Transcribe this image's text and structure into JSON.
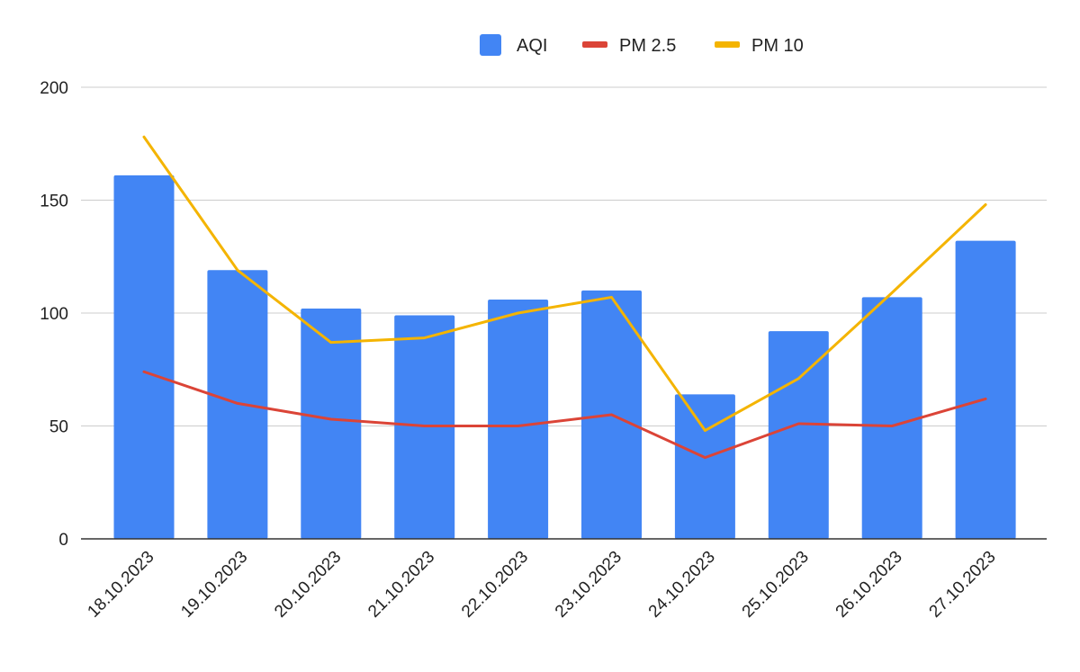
{
  "chart_data": {
    "type": "bar",
    "title": "",
    "xlabel": "",
    "ylabel": "",
    "categories": [
      "18.10.2023",
      "19.10.2023",
      "20.10.2023",
      "21.10.2023",
      "22.10.2023",
      "23.10.2023",
      "24.10.2023",
      "25.10.2023",
      "26.10.2023",
      "27.10.2023"
    ],
    "ylim": [
      0,
      200
    ],
    "yticks": [
      "0",
      "50",
      "100",
      "150",
      "200"
    ],
    "grid": true,
    "legend_position": "top",
    "series": [
      {
        "name": "AQI",
        "type": "bar",
        "color": "#4285f4",
        "values": [
          161,
          119,
          102,
          99,
          106,
          110,
          64,
          92,
          107,
          132
        ]
      },
      {
        "name": "PM 2.5",
        "type": "line",
        "color": "#db4437",
        "values": [
          74,
          60,
          53,
          50,
          50,
          55,
          36,
          51,
          50,
          62
        ]
      },
      {
        "name": "PM 10",
        "type": "line",
        "color": "#f4b400",
        "values": [
          178,
          119,
          87,
          89,
          100,
          107,
          48,
          71,
          109,
          148
        ]
      }
    ]
  }
}
